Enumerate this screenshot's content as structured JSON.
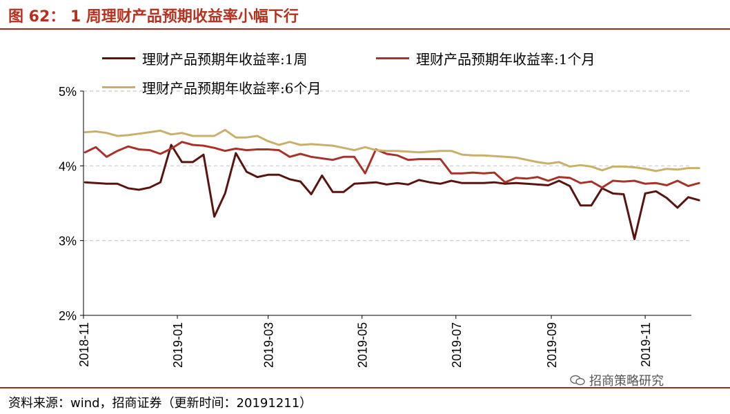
{
  "figure": {
    "title": "图 62：   1 周理财产品预期收益率小幅下行",
    "source": "资料来源：wind，招商证券（更新时间：20191211）",
    "watermark": "招商策略研究",
    "watermark_icon": "wechat-icon"
  },
  "colors": {
    "title": "#b8311e",
    "rule": "#9b2a1a",
    "series_1w": "#5a1410",
    "series_1m": "#a8322a",
    "series_6m": "#c9b06a"
  },
  "chart_data": {
    "type": "line",
    "title": "",
    "xlabel": "",
    "ylabel": "",
    "ylim": [
      0.02,
      0.05
    ],
    "yticks": [
      {
        "value": 0.02,
        "label": "2%"
      },
      {
        "value": 0.03,
        "label": "3%"
      },
      {
        "value": 0.04,
        "label": "4%"
      },
      {
        "value": 0.05,
        "label": "5%"
      }
    ],
    "xlim": [
      "2018-11-01",
      "2019-12-01"
    ],
    "xticks": [
      "2018-11",
      "2019-01",
      "2019-03",
      "2019-05",
      "2019-07",
      "2019-09",
      "2019-11"
    ],
    "grid": "horizontal dashed",
    "legend": "top",
    "series": [
      {
        "name": "理财产品预期年收益率:1周",
        "color": "#5a1410",
        "points": [
          [
            "2018-11-02",
            0.0378
          ],
          [
            "2018-11-09",
            0.0377
          ],
          [
            "2018-11-16",
            0.0376
          ],
          [
            "2018-11-23",
            0.0376
          ],
          [
            "2018-11-30",
            0.037
          ],
          [
            "2018-12-07",
            0.0368
          ],
          [
            "2018-12-14",
            0.0371
          ],
          [
            "2018-12-21",
            0.0378
          ],
          [
            "2018-12-28",
            0.0428
          ],
          [
            "2019-01-04",
            0.0405
          ],
          [
            "2019-01-11",
            0.0405
          ],
          [
            "2019-01-18",
            0.0415
          ],
          [
            "2019-01-25",
            0.0332
          ],
          [
            "2019-02-01",
            0.0363
          ],
          [
            "2019-02-08",
            0.0417
          ],
          [
            "2019-02-15",
            0.0392
          ],
          [
            "2019-02-22",
            0.0385
          ],
          [
            "2019-03-01",
            0.0388
          ],
          [
            "2019-03-08",
            0.0388
          ],
          [
            "2019-03-15",
            0.0382
          ],
          [
            "2019-03-22",
            0.0379
          ],
          [
            "2019-03-29",
            0.0362
          ],
          [
            "2019-04-05",
            0.0387
          ],
          [
            "2019-04-12",
            0.0365
          ],
          [
            "2019-04-19",
            0.0365
          ],
          [
            "2019-04-26",
            0.0376
          ],
          [
            "2019-05-03",
            0.0377
          ],
          [
            "2019-05-10",
            0.0378
          ],
          [
            "2019-05-17",
            0.0375
          ],
          [
            "2019-05-24",
            0.0377
          ],
          [
            "2019-05-31",
            0.0375
          ],
          [
            "2019-06-07",
            0.0381
          ],
          [
            "2019-06-14",
            0.0378
          ],
          [
            "2019-06-21",
            0.0376
          ],
          [
            "2019-06-28",
            0.038
          ],
          [
            "2019-07-05",
            0.0377
          ],
          [
            "2019-07-12",
            0.0377
          ],
          [
            "2019-07-19",
            0.0377
          ],
          [
            "2019-07-26",
            0.0378
          ],
          [
            "2019-08-02",
            0.0376
          ],
          [
            "2019-08-09",
            0.0377
          ],
          [
            "2019-08-16",
            0.0376
          ],
          [
            "2019-08-23",
            0.0375
          ],
          [
            "2019-08-30",
            0.0374
          ],
          [
            "2019-09-06",
            0.038
          ],
          [
            "2019-09-13",
            0.0373
          ],
          [
            "2019-09-20",
            0.0347
          ],
          [
            "2019-09-27",
            0.0347
          ],
          [
            "2019-10-04",
            0.037
          ],
          [
            "2019-10-11",
            0.0363
          ],
          [
            "2019-10-18",
            0.0362
          ],
          [
            "2019-10-25",
            0.0302
          ],
          [
            "2019-11-01",
            0.0363
          ],
          [
            "2019-11-08",
            0.0366
          ],
          [
            "2019-11-15",
            0.0357
          ],
          [
            "2019-11-22",
            0.0344
          ],
          [
            "2019-11-29",
            0.0358
          ],
          [
            "2019-12-06",
            0.0354
          ]
        ]
      },
      {
        "name": "理财产品预期年收益率:1个月",
        "color": "#a8322a",
        "points": [
          [
            "2018-11-02",
            0.0418
          ],
          [
            "2018-11-09",
            0.0425
          ],
          [
            "2018-11-16",
            0.0412
          ],
          [
            "2018-11-23",
            0.042
          ],
          [
            "2018-11-30",
            0.0426
          ],
          [
            "2018-12-07",
            0.0422
          ],
          [
            "2018-12-14",
            0.0421
          ],
          [
            "2018-12-21",
            0.0416
          ],
          [
            "2018-12-28",
            0.0423
          ],
          [
            "2019-01-04",
            0.0432
          ],
          [
            "2019-01-11",
            0.0428
          ],
          [
            "2019-01-18",
            0.0427
          ],
          [
            "2019-01-25",
            0.0424
          ],
          [
            "2019-02-01",
            0.042
          ],
          [
            "2019-02-08",
            0.0423
          ],
          [
            "2019-02-15",
            0.0421
          ],
          [
            "2019-02-22",
            0.0422
          ],
          [
            "2019-03-01",
            0.0422
          ],
          [
            "2019-03-08",
            0.0421
          ],
          [
            "2019-03-15",
            0.0412
          ],
          [
            "2019-03-22",
            0.0416
          ],
          [
            "2019-03-29",
            0.0412
          ],
          [
            "2019-04-05",
            0.041
          ],
          [
            "2019-04-12",
            0.0408
          ],
          [
            "2019-04-19",
            0.0412
          ],
          [
            "2019-04-26",
            0.0412
          ],
          [
            "2019-05-03",
            0.039
          ],
          [
            "2019-05-10",
            0.0422
          ],
          [
            "2019-05-17",
            0.0416
          ],
          [
            "2019-05-24",
            0.0414
          ],
          [
            "2019-05-31",
            0.0408
          ],
          [
            "2019-06-07",
            0.0409
          ],
          [
            "2019-06-14",
            0.0409
          ],
          [
            "2019-06-21",
            0.0409
          ],
          [
            "2019-06-28",
            0.039
          ],
          [
            "2019-07-05",
            0.039
          ],
          [
            "2019-07-12",
            0.0391
          ],
          [
            "2019-07-19",
            0.039
          ],
          [
            "2019-07-26",
            0.0391
          ],
          [
            "2019-08-02",
            0.0378
          ],
          [
            "2019-08-09",
            0.0384
          ],
          [
            "2019-08-16",
            0.0383
          ],
          [
            "2019-08-23",
            0.0385
          ],
          [
            "2019-08-30",
            0.038
          ],
          [
            "2019-09-06",
            0.0385
          ],
          [
            "2019-09-13",
            0.0384
          ],
          [
            "2019-09-20",
            0.0377
          ],
          [
            "2019-09-27",
            0.0379
          ],
          [
            "2019-10-04",
            0.0371
          ],
          [
            "2019-10-11",
            0.038
          ],
          [
            "2019-10-18",
            0.0379
          ],
          [
            "2019-10-25",
            0.038
          ],
          [
            "2019-11-01",
            0.0376
          ],
          [
            "2019-11-08",
            0.0377
          ],
          [
            "2019-11-15",
            0.0374
          ],
          [
            "2019-11-22",
            0.038
          ],
          [
            "2019-11-29",
            0.0373
          ],
          [
            "2019-12-06",
            0.0377
          ]
        ]
      },
      {
        "name": "理财产品预期年收益率:6个月",
        "color": "#c9b06a",
        "points": [
          [
            "2018-11-02",
            0.0445
          ],
          [
            "2018-11-09",
            0.0446
          ],
          [
            "2018-11-16",
            0.0444
          ],
          [
            "2018-11-23",
            0.044
          ],
          [
            "2018-11-30",
            0.0441
          ],
          [
            "2018-12-07",
            0.0443
          ],
          [
            "2018-12-14",
            0.0445
          ],
          [
            "2018-12-21",
            0.0447
          ],
          [
            "2018-12-28",
            0.0442
          ],
          [
            "2019-01-04",
            0.0444
          ],
          [
            "2019-01-11",
            0.044
          ],
          [
            "2019-01-18",
            0.044
          ],
          [
            "2019-01-25",
            0.044
          ],
          [
            "2019-02-01",
            0.0448
          ],
          [
            "2019-02-08",
            0.0438
          ],
          [
            "2019-02-15",
            0.0438
          ],
          [
            "2019-02-22",
            0.044
          ],
          [
            "2019-03-01",
            0.0433
          ],
          [
            "2019-03-08",
            0.0428
          ],
          [
            "2019-03-15",
            0.0432
          ],
          [
            "2019-03-22",
            0.0428
          ],
          [
            "2019-03-29",
            0.0429
          ],
          [
            "2019-04-05",
            0.0428
          ],
          [
            "2019-04-12",
            0.0427
          ],
          [
            "2019-04-19",
            0.0424
          ],
          [
            "2019-04-26",
            0.0421
          ],
          [
            "2019-05-03",
            0.0425
          ],
          [
            "2019-05-10",
            0.0421
          ],
          [
            "2019-05-17",
            0.042
          ],
          [
            "2019-05-24",
            0.042
          ],
          [
            "2019-05-31",
            0.0419
          ],
          [
            "2019-06-07",
            0.0418
          ],
          [
            "2019-06-14",
            0.0419
          ],
          [
            "2019-06-21",
            0.042
          ],
          [
            "2019-06-28",
            0.042
          ],
          [
            "2019-07-05",
            0.0415
          ],
          [
            "2019-07-12",
            0.0414
          ],
          [
            "2019-07-19",
            0.0414
          ],
          [
            "2019-07-26",
            0.0413
          ],
          [
            "2019-08-02",
            0.0412
          ],
          [
            "2019-08-09",
            0.0411
          ],
          [
            "2019-08-16",
            0.0408
          ],
          [
            "2019-08-23",
            0.0405
          ],
          [
            "2019-08-30",
            0.0403
          ],
          [
            "2019-09-06",
            0.0405
          ],
          [
            "2019-09-13",
            0.0399
          ],
          [
            "2019-09-20",
            0.0401
          ],
          [
            "2019-09-27",
            0.0399
          ],
          [
            "2019-10-04",
            0.0394
          ],
          [
            "2019-10-11",
            0.0399
          ],
          [
            "2019-10-18",
            0.0399
          ],
          [
            "2019-10-25",
            0.0398
          ],
          [
            "2019-11-01",
            0.0396
          ],
          [
            "2019-11-08",
            0.0393
          ],
          [
            "2019-11-15",
            0.0396
          ],
          [
            "2019-11-22",
            0.0395
          ],
          [
            "2019-11-29",
            0.0397
          ],
          [
            "2019-12-06",
            0.0397
          ]
        ]
      }
    ]
  }
}
